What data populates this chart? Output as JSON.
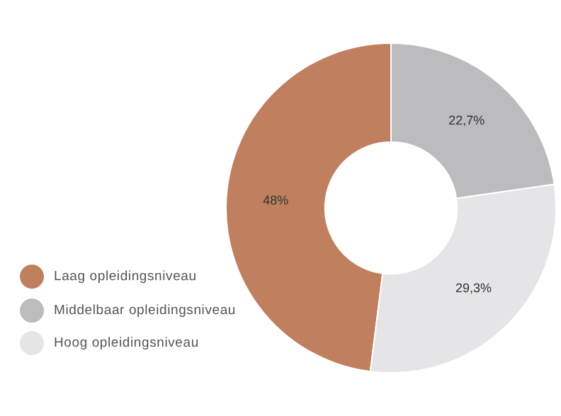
{
  "chart_data": {
    "type": "donut",
    "categories": [
      "Laag opleidingsniveau",
      "Middelbaar opleidingsniveau",
      "Hoog opleidingsniveau"
    ],
    "values": [
      48,
      22.7,
      29.3
    ],
    "colors": [
      "#c0805f",
      "#bcbcbe",
      "#e5e5e7"
    ],
    "value_labels": [
      "48%",
      "22,7%",
      "29,3%"
    ],
    "legend": "left"
  }
}
